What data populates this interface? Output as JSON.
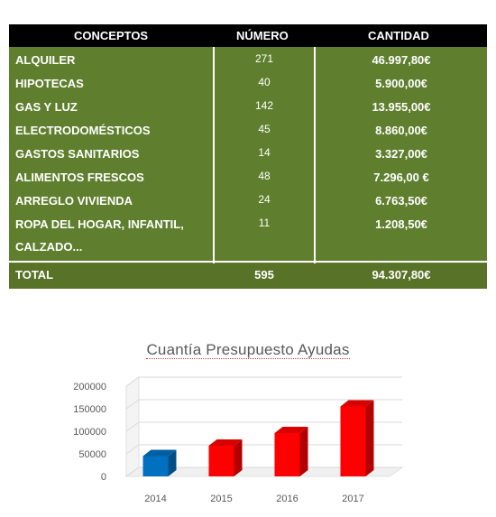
{
  "table": {
    "headers": {
      "concept": "CONCEPTOS",
      "number": "NÚMERO",
      "amount": "CANTIDAD"
    },
    "rows": [
      {
        "concept": "ALQUILER",
        "number": "271",
        "amount": "46.997,80€"
      },
      {
        "concept": "HIPOTECAS",
        "number": "40",
        "amount": "5.900,00€"
      },
      {
        "concept": "GAS Y LUZ",
        "number": "142",
        "amount": "13.955,00€"
      },
      {
        "concept": "ELECTRODOMÉSTICOS",
        "number": "45",
        "amount": "8.860,00€"
      },
      {
        "concept": "GASTOS SANITARIOS",
        "number": "14",
        "amount": "3.327,00€"
      },
      {
        "concept": "ALIMENTOS FRESCOS",
        "number": "48",
        "amount": "7.296,00 €"
      },
      {
        "concept": "ARREGLO VIVIENDA",
        "number": "24",
        "amount": "6.763,50€"
      },
      {
        "concept": "ROPA DEL HOGAR, INFANTIL,",
        "concept_cont": "CALZADO...",
        "number": "11",
        "amount": "1.208,50€"
      }
    ],
    "total": {
      "concept": "TOTAL",
      "number": "595",
      "amount": "94.307,80€"
    },
    "colors": {
      "header_bg": "#000000",
      "body_bg": "#5f7f2e",
      "total_bg": "#587328",
      "text": "#ffffff"
    }
  },
  "chart_data": {
    "type": "bar",
    "title": "Cuantía Presupuesto Ayudas",
    "categories": [
      "2014",
      "2015",
      "2016",
      "2017"
    ],
    "values": [
      45000,
      68000,
      96000,
      155000
    ],
    "y_ticks": [
      "0",
      "50000",
      "100000",
      "150000",
      "200000"
    ],
    "ylim": [
      0,
      200000
    ],
    "bar_colors": [
      "#0070c0",
      "#ff0000",
      "#ff0000",
      "#ff0000"
    ],
    "style": "3d-columns",
    "grid": true,
    "legend": "none"
  }
}
